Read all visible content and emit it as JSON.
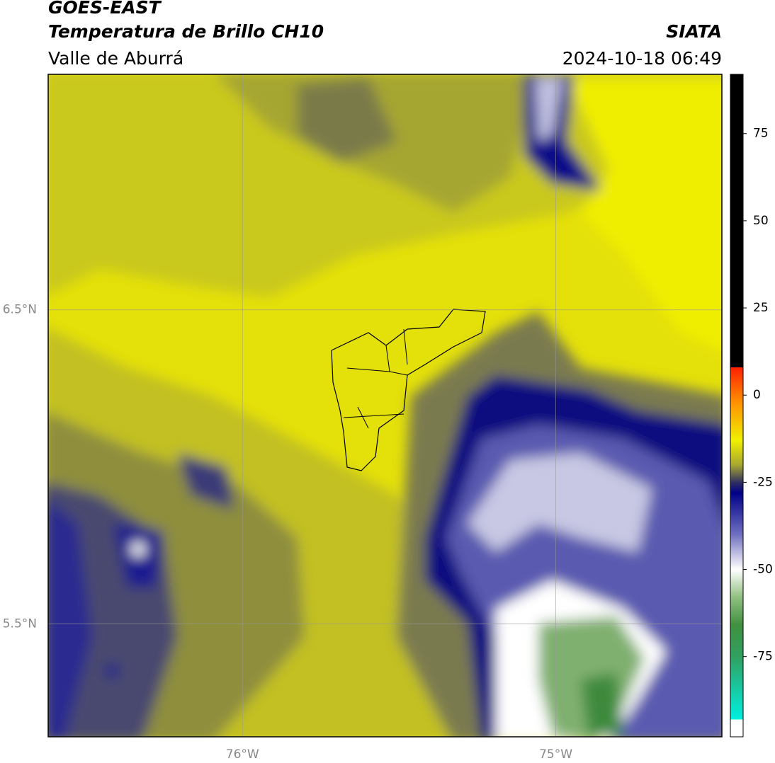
{
  "header": {
    "title": "GOES-EAST",
    "subtitle": "Temperatura de Brillo CH10",
    "region": "Valle de Aburrá",
    "source": "SIATA",
    "datetime": "2024-10-18 06:49"
  },
  "map": {
    "lon_range": [
      -76.62,
      -74.47
    ],
    "lat_range": [
      5.14,
      7.25
    ],
    "lon_ticks": [
      {
        "value": -76,
        "label": "76°W"
      },
      {
        "value": -75,
        "label": "75°W"
      }
    ],
    "lat_ticks": [
      {
        "value": 6.5,
        "label": "6.5°N"
      },
      {
        "value": 5.5,
        "label": "5.5°N"
      }
    ],
    "grid": true
  },
  "colorbar": {
    "range": [
      -98,
      92
    ],
    "ticks": [
      75,
      50,
      25,
      0,
      -25,
      -50,
      -75
    ],
    "stops": [
      {
        "value": 92,
        "color": "#000000"
      },
      {
        "value": 8,
        "color": "#000000"
      },
      {
        "value": 8,
        "color": "#ff2000"
      },
      {
        "value": -2,
        "color": "#ff9000"
      },
      {
        "value": -13,
        "color": "#f0f000"
      },
      {
        "value": -20,
        "color": "#a8a830"
      },
      {
        "value": -25,
        "color": "#303060"
      },
      {
        "value": -28,
        "color": "#000088"
      },
      {
        "value": -40,
        "color": "#7070c0"
      },
      {
        "value": -50,
        "color": "#ffffff"
      },
      {
        "value": -58,
        "color": "#90c080"
      },
      {
        "value": -66,
        "color": "#409040"
      },
      {
        "value": -75,
        "color": "#30a060"
      },
      {
        "value": -93,
        "color": "#00f0e0"
      },
      {
        "value": -93,
        "color": "#ffffff"
      },
      {
        "value": -98,
        "color": "#ffffff"
      }
    ]
  }
}
